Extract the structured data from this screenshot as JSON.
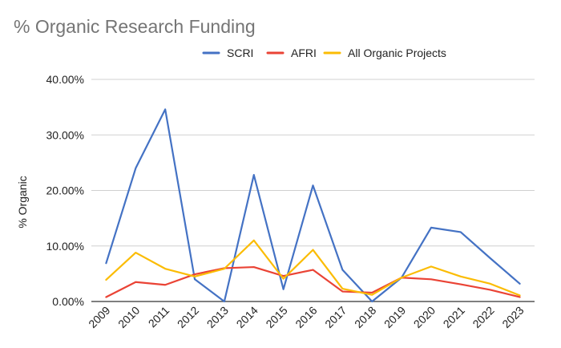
{
  "chart_data": {
    "type": "line",
    "title": "% Organic Research Funding",
    "ylabel": "% Organic",
    "xlabel": "",
    "categories": [
      "2009",
      "2010",
      "2011",
      "2012",
      "2013",
      "2014",
      "2015",
      "2016",
      "2017",
      "2018",
      "2019",
      "2020",
      "2021",
      "2022",
      "2023"
    ],
    "ylim": [
      0,
      40
    ],
    "yticks": [
      0,
      10,
      20,
      30,
      40
    ],
    "ytick_labels": [
      "0.00%",
      "10.00%",
      "20.00%",
      "30.00%",
      "40.00%"
    ],
    "grid": true,
    "legend_position": "top",
    "series": [
      {
        "name": "SCRI",
        "color": "#4472c4",
        "values": [
          6.9,
          24.0,
          34.6,
          4.0,
          0.0,
          22.8,
          2.2,
          20.9,
          5.7,
          0.0,
          4.3,
          13.3,
          12.5,
          7.8,
          3.2
        ]
      },
      {
        "name": "AFRI",
        "color": "#ea4335",
        "values": [
          0.8,
          3.5,
          3.0,
          4.9,
          6.0,
          6.2,
          4.6,
          5.7,
          1.8,
          1.6,
          4.3,
          4.0,
          3.1,
          2.1,
          0.8
        ]
      },
      {
        "name": "All Organic Projects",
        "color": "#fbbc04",
        "values": [
          3.9,
          8.8,
          5.9,
          4.5,
          5.9,
          11.0,
          4.1,
          9.3,
          2.3,
          1.2,
          4.3,
          6.3,
          4.5,
          3.2,
          1.1
        ]
      }
    ]
  }
}
